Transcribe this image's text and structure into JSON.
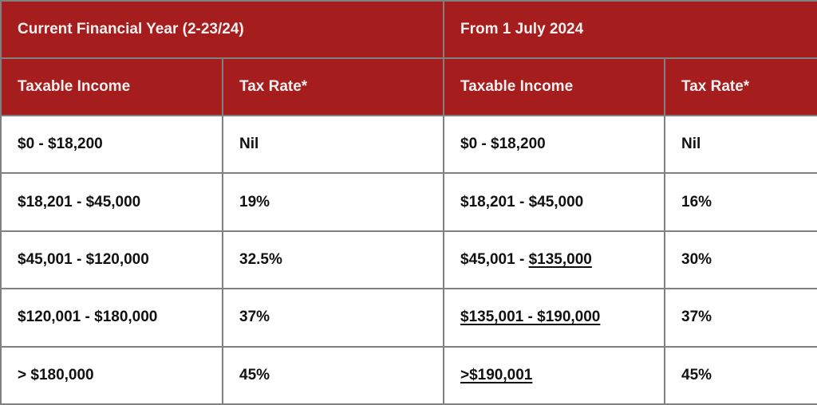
{
  "headers": {
    "current_year": "Current Financial Year (2-23/24)",
    "from_july": "From 1 July 2024",
    "taxable_income": "Taxable Income",
    "tax_rate": "Tax Rate*"
  },
  "rows": [
    {
      "cur_income": "$0 - $18,200",
      "cur_rate": "Nil",
      "new_income_plain": "$0 - $18,200",
      "new_income_underlined": "",
      "new_rate": "Nil"
    },
    {
      "cur_income": "$18,201 - $45,000",
      "cur_rate": "19%",
      "new_income_plain": "$18,201 - $45,000",
      "new_income_underlined": "",
      "new_rate": "16%"
    },
    {
      "cur_income": "$45,001 - $120,000",
      "cur_rate": "32.5%",
      "new_income_plain": "$45,001 - ",
      "new_income_underlined": "$135,000",
      "new_rate": "30%"
    },
    {
      "cur_income": "$120,001 - $180,000",
      "cur_rate": "37%",
      "new_income_plain": "",
      "new_income_underlined": "$135,001 - $190,000",
      "new_rate": "37%"
    },
    {
      "cur_income": "> $180,000",
      "cur_rate": "45%",
      "new_income_plain": "",
      "new_income_underlined": ">$190,001",
      "new_rate": "45%"
    }
  ],
  "colors": {
    "header_bg": "#a51d1d",
    "border": "#808080"
  }
}
